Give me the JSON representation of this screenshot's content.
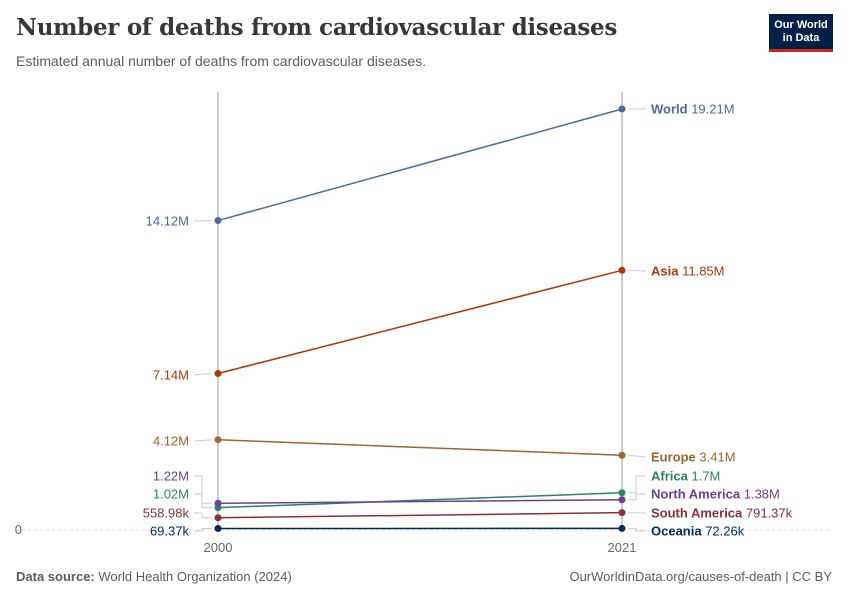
{
  "title": "Number of deaths from cardiovascular diseases",
  "subtitle": "Estimated annual number of deaths from cardiovascular diseases.",
  "logo": {
    "line1": "Our World",
    "line2": "in Data"
  },
  "footer": {
    "source_label": "Data source:",
    "source": "World Health Organization (2024)",
    "link": "OurWorldinData.org/causes-of-death | CC BY"
  },
  "chart_data": {
    "type": "line",
    "subtype": "slope",
    "x": [
      "2000",
      "2021"
    ],
    "y_zero_label": "0",
    "ylim": [
      0,
      19210000
    ],
    "series": [
      {
        "name": "World",
        "values": [
          14120000,
          19210000
        ],
        "labels": [
          "14.12M",
          "19.21M"
        ],
        "color": "#4c6a9c"
      },
      {
        "name": "Asia",
        "values": [
          7140000,
          11850000
        ],
        "labels": [
          "7.14M",
          "11.85M"
        ],
        "color": "#b13507"
      },
      {
        "name": "Europe",
        "values": [
          4120000,
          3410000
        ],
        "labels": [
          "4.12M",
          "3.41M"
        ],
        "color": "#9a652e"
      },
      {
        "name": "Africa",
        "values": [
          1020000,
          1700000
        ],
        "labels": [
          "1.02M",
          "1.7M"
        ],
        "color": "#2c8465"
      },
      {
        "name": "North America",
        "values": [
          1220000,
          1380000
        ],
        "labels": [
          "1.22M",
          "1.38M"
        ],
        "color": "#6d3e91"
      },
      {
        "name": "South America",
        "values": [
          558980,
          791370
        ],
        "labels": [
          "558.98k",
          "791.37k"
        ],
        "color": "#883039"
      },
      {
        "name": "Oceania",
        "values": [
          69370,
          72260
        ],
        "labels": [
          "69.37k",
          "72.26k"
        ],
        "color": "#00295b"
      }
    ]
  }
}
